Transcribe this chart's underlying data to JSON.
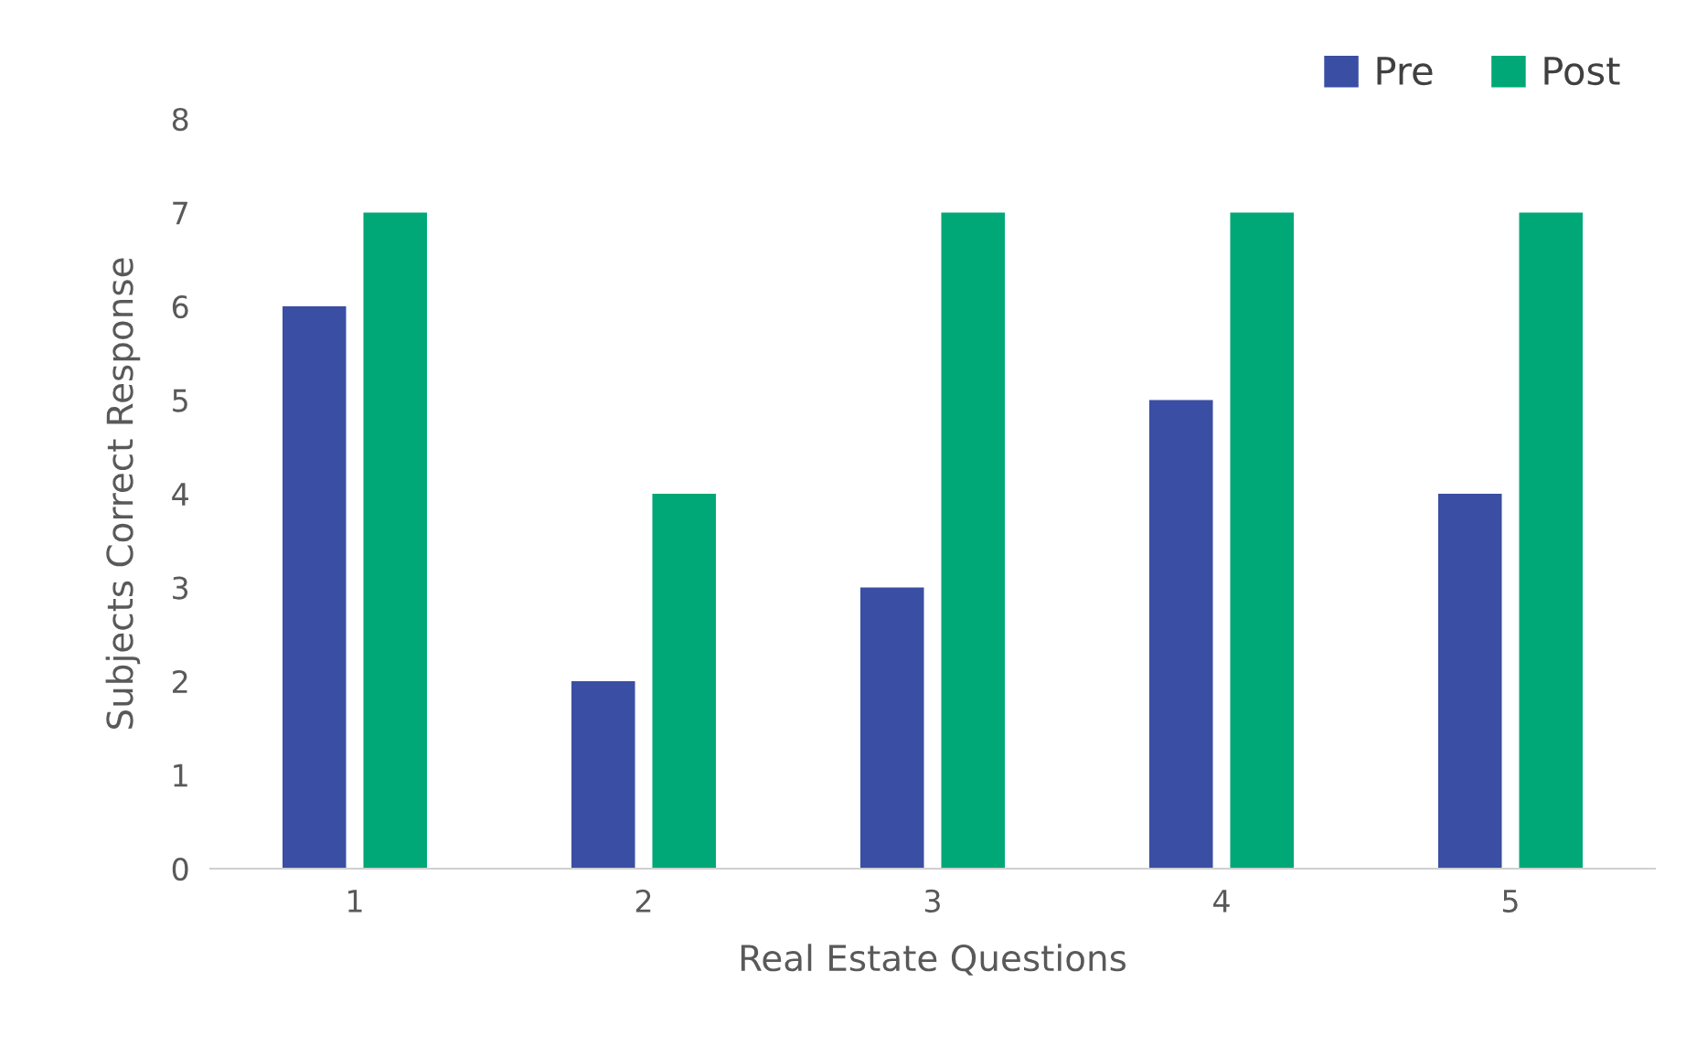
{
  "chart_data": {
    "type": "bar",
    "xlabel": "Real Estate Questions",
    "ylabel": "Subjects Correct Response",
    "categories": [
      "1",
      "2",
      "3",
      "4",
      "5"
    ],
    "series": [
      {
        "name": "Pre",
        "color": "#3a4ea3",
        "values": [
          6,
          2,
          3,
          5,
          4
        ]
      },
      {
        "name": "Post",
        "color": "#00a877",
        "values": [
          7,
          4,
          7,
          7,
          7
        ]
      }
    ],
    "ylim": [
      0,
      8
    ],
    "yticks": [
      0,
      1,
      2,
      3,
      4,
      5,
      6,
      7,
      8
    ],
    "grid": false,
    "legend": "top right"
  }
}
